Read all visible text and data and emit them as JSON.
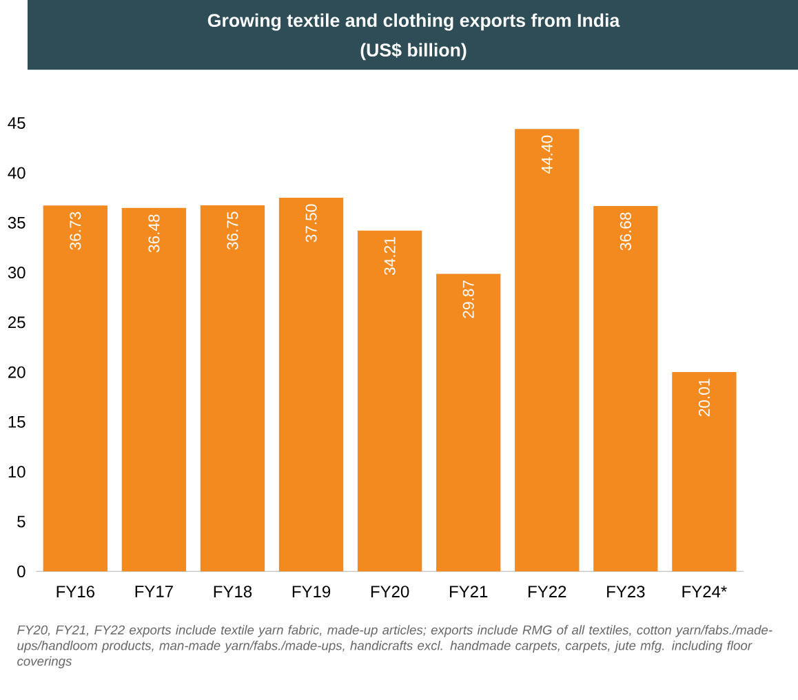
{
  "chart_data": {
    "type": "bar",
    "title": "Growing textile and clothing exports from India",
    "subtitle": "(US$ billion)",
    "categories": [
      "FY16",
      "FY17",
      "FY18",
      "FY19",
      "FY20",
      "FY21",
      "FY22",
      "FY23",
      "FY24*"
    ],
    "values": [
      36.73,
      36.48,
      36.75,
      37.5,
      34.21,
      29.87,
      44.4,
      36.68,
      20.01
    ],
    "value_labels": [
      "36.73",
      "36.48",
      "36.75",
      "37.50",
      "34.21",
      "29.87",
      "44.40",
      "36.68",
      "20.01"
    ],
    "color": "#f28a20",
    "ylim": [
      0,
      45
    ],
    "yticks": [
      0,
      5,
      10,
      15,
      20,
      25,
      30,
      35,
      40,
      45
    ],
    "annotations": [
      "FY20, FY21, FY22 exports include textile yarn fabric, made-up articles; exports include RMG of all textiles, cotton yarn/fabs./made-ups/handloom products, man-made yarn/fabs./made-ups, handicrafts excl. handmade carpets, carpets, jute mfg. including floor coverings"
    ]
  }
}
